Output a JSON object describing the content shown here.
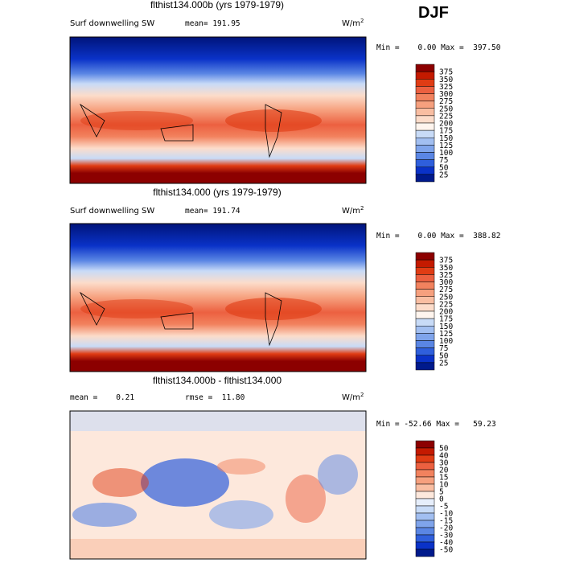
{
  "season": "DJF",
  "panels": [
    {
      "title": "flthist134.000b (yrs 1979-1979)",
      "variable": "Surf downwelling SW",
      "stats": [
        "mean= 191.95"
      ],
      "units": "W/m",
      "units_power": "2",
      "range": "Min =    0.00 Max =  397.50",
      "levels": [
        "375",
        "350",
        "325",
        "300",
        "275",
        "250",
        "225",
        "200",
        "175",
        "150",
        "125",
        "100",
        "75",
        "50",
        "25"
      ],
      "colors": [
        "#8c0000",
        "#c41a00",
        "#e03c14",
        "#ec6040",
        "#f2825e",
        "#f6a07e",
        "#f9bea2",
        "#fcdcca",
        "#fff5ee",
        "#c8dbf7",
        "#a2bff1",
        "#7fa4eb",
        "#5a86e4",
        "#2f5fdc",
        "#0a32c8",
        "#001a8c"
      ]
    },
    {
      "title": "flthist134.000 (yrs 1979-1979)",
      "variable": "Surf downwelling SW",
      "stats": [
        "mean= 191.74"
      ],
      "units": "W/m",
      "units_power": "2",
      "range": "Min =    0.00 Max =  388.82",
      "levels": [
        "375",
        "350",
        "325",
        "300",
        "275",
        "250",
        "225",
        "200",
        "175",
        "150",
        "125",
        "100",
        "75",
        "50",
        "25"
      ],
      "colors": [
        "#8c0000",
        "#c41a00",
        "#e03c14",
        "#ec6040",
        "#f2825e",
        "#f6a07e",
        "#f9bea2",
        "#fcdcca",
        "#fff5ee",
        "#c8dbf7",
        "#a2bff1",
        "#7fa4eb",
        "#5a86e4",
        "#2f5fdc",
        "#0a32c8",
        "#001a8c"
      ]
    },
    {
      "title": "flthist134.000b - flthist134.000",
      "variable": "",
      "stats": [
        "mean =    0.21",
        "rmse =  11.80"
      ],
      "units": "W/m",
      "units_power": "2",
      "range": "Min = -52.66 Max =   59.23",
      "levels": [
        "50",
        "40",
        "30",
        "20",
        "15",
        "10",
        "5",
        "0",
        "-5",
        "-10",
        "-15",
        "-20",
        "-30",
        "-40",
        "-50"
      ],
      "colors": [
        "#8c0000",
        "#c41a00",
        "#e03c14",
        "#ec6040",
        "#f2825e",
        "#f6a07e",
        "#f9bea2",
        "#fde8dc",
        "#e6eefb",
        "#c8dbf7",
        "#a2bff1",
        "#7fa4eb",
        "#5a86e4",
        "#2f5fdc",
        "#0a32c8",
        "#001a8c"
      ]
    }
  ]
}
